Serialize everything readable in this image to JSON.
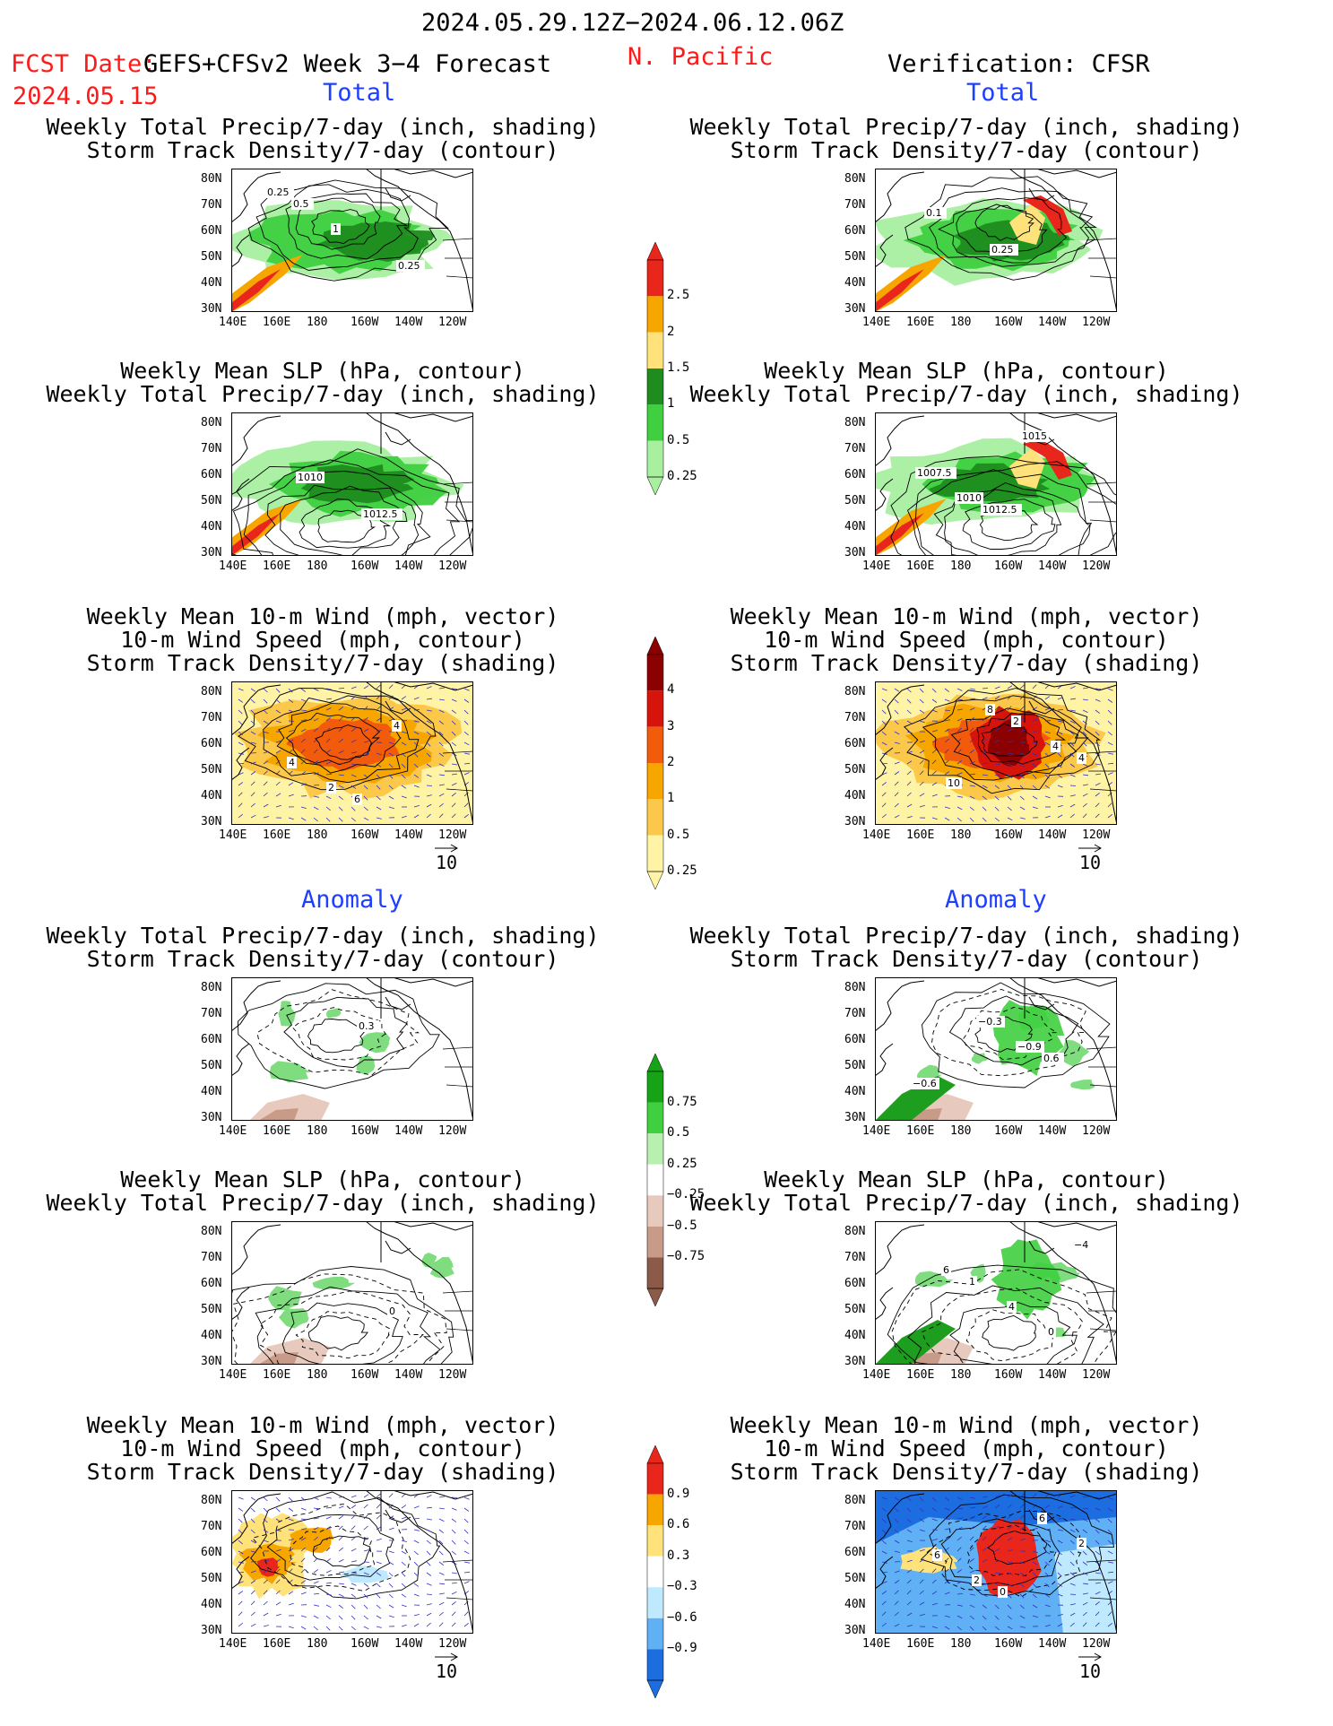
{
  "header": {
    "date_range": "2024.05.29.12Z−2024.06.12.06Z",
    "fcst_label": "FCST Date:",
    "fcst_date": "2024.05.15",
    "model_label": "GEFS+CFSv2 Week 3−4 Forecast",
    "region": "N. Pacific",
    "verification": "Verification: CFSR"
  },
  "sections": {
    "total_left": "Total",
    "total_right": "Total",
    "anomaly_left": "Anomaly",
    "anomaly_right": "Anomaly"
  },
  "panel_titles": {
    "precip_storm": [
      "Weekly Total Precip/7-day (inch, shading)",
      "Storm Track Density/7-day (contour)"
    ],
    "slp_precip": [
      "Weekly Mean SLP (hPa, contour)",
      "Weekly Total Precip/7-day (inch, shading)"
    ],
    "wind_storm": [
      "Weekly Mean 10-m Wind (mph, vector)",
      "10-m Wind Speed (mph, contour)",
      "Storm Track Density/7-day (shading)"
    ]
  },
  "axes": {
    "lat_labels": [
      "80N",
      "70N",
      "60N",
      "50N",
      "40N",
      "30N"
    ],
    "lon_labels": [
      "140E",
      "160E",
      "180",
      "160W",
      "140W",
      "120W"
    ]
  },
  "vector_reference": "10",
  "colorbars": {
    "precip_total": {
      "labels": [
        "2.5",
        "2",
        "1.5",
        "1",
        "0.5",
        "0.25"
      ],
      "colors": [
        "#e8261c",
        "#f7a600",
        "#ffe27a",
        "#1e8c1e",
        "#3fcf3f",
        "#a8efa0"
      ]
    },
    "storm_total": {
      "labels": [
        "4",
        "3",
        "2",
        "1",
        "0.5",
        "0.25"
      ],
      "colors": [
        "#8b0000",
        "#d6140c",
        "#f25b0c",
        "#f7a600",
        "#fbc84a",
        "#fff3a6"
      ]
    },
    "precip_anom": {
      "labels": [
        "0.75",
        "0.5",
        "0.25",
        "−0.25",
        "−0.5",
        "−0.75"
      ],
      "colors": [
        "#16a316",
        "#3fcf3f",
        "#b8f0b0",
        "#ffffff",
        "#e7c9bd",
        "#c89a88",
        "#8b5a48"
      ]
    },
    "storm_anom": {
      "labels": [
        "0.9",
        "0.6",
        "0.3",
        "−0.3",
        "−0.6",
        "−0.9"
      ],
      "colors": [
        "#e8261c",
        "#f7a600",
        "#ffe27a",
        "#ffffff",
        "#bfe9ff",
        "#5fb0f5",
        "#1c6ee0"
      ]
    }
  },
  "contour_labels": {
    "p1_left": [
      "0.25",
      "1",
      "0.25",
      "0.5"
    ],
    "p1_right": [
      "0.1",
      "0.25"
    ],
    "p2_left": [
      "1010",
      "1012.5"
    ],
    "p2_right": [
      "1010",
      "1015",
      "1007.5",
      "1012.5"
    ],
    "p3_left": [
      "2",
      "4",
      "4",
      "6"
    ],
    "p3_right": [
      "8",
      "4",
      "10",
      "2",
      "4"
    ],
    "p4_left": [
      "0.3"
    ],
    "p4_right": [
      "−0.9",
      "−0.6",
      "−0.3",
      "0.6"
    ],
    "p5_left": [
      "0"
    ],
    "p5_right": [
      "0",
      "6",
      "4",
      "−4",
      "1"
    ],
    "p6_left": [],
    "p6_right": [
      "2",
      "2",
      "6",
      "6",
      "0"
    ]
  }
}
